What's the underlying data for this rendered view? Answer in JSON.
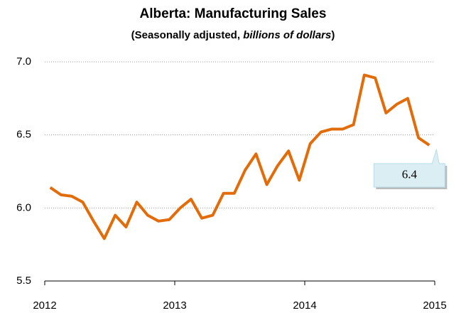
{
  "chart_data": {
    "type": "line",
    "title": "Alberta: Manufacturing Sales",
    "subtitle_plain": "(Seasonally adjusted, ",
    "subtitle_italic": "billions of dollars",
    "subtitle_end": ")",
    "annotation": "6.4",
    "xlim": [
      2012,
      2015
    ],
    "xticks": [
      2012,
      2013,
      2014,
      2015
    ],
    "ylim": [
      5.5,
      7.0
    ],
    "yticks": [
      {
        "value": 5.5,
        "label": "5.5"
      },
      {
        "value": 6.0,
        "label": "6.0"
      },
      {
        "value": 6.5,
        "label": "6.5"
      },
      {
        "value": 7.0,
        "label": "7.0"
      }
    ],
    "grid": true,
    "series": [
      {
        "color": "#e36c0a",
        "x": [
          2012.042,
          2012.125,
          2012.208,
          2012.292,
          2012.375,
          2012.458,
          2012.542,
          2012.625,
          2012.708,
          2012.792,
          2012.875,
          2012.958,
          2013.042,
          2013.125,
          2013.208,
          2013.292,
          2013.375,
          2013.458,
          2013.542,
          2013.625,
          2013.708,
          2013.792,
          2013.875,
          2013.958,
          2014.042,
          2014.125,
          2014.208,
          2014.292,
          2014.375,
          2014.458,
          2014.542,
          2014.625,
          2014.708,
          2014.792,
          2014.875,
          2014.958
        ],
        "values": [
          6.14,
          6.09,
          6.08,
          6.04,
          5.91,
          5.79,
          5.95,
          5.87,
          6.04,
          5.95,
          5.91,
          5.92,
          6.0,
          6.06,
          5.93,
          5.95,
          6.1,
          6.1,
          6.26,
          6.37,
          6.16,
          6.29,
          6.39,
          6.19,
          6.44,
          6.52,
          6.54,
          6.54,
          6.57,
          6.91,
          6.89,
          6.65,
          6.71,
          6.75,
          6.48,
          6.43
        ]
      }
    ]
  }
}
